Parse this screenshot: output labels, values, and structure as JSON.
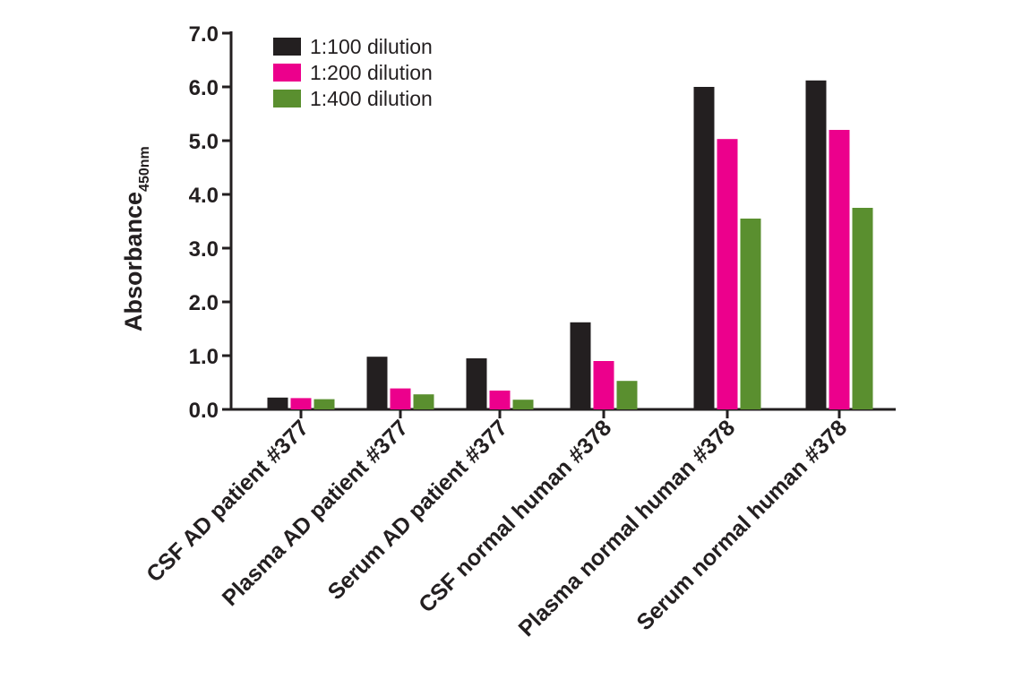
{
  "chart_data": {
    "type": "bar",
    "title": "",
    "xlabel": "",
    "ylabel": "Absorbance",
    "ylabel_subscript": "450nm",
    "ylim": [
      0,
      7
    ],
    "yticks": [
      "0.0",
      "1.0",
      "2.0",
      "3.0",
      "4.0",
      "5.0",
      "6.0",
      "7.0"
    ],
    "grid": false,
    "legend_position": "top-left",
    "categories": [
      "CSF AD patient #377",
      "Plasma AD patient #377",
      "Serum AD patient #377",
      "CSF normal human #378",
      "Plasma normal human #378",
      "Serum normal human #378"
    ],
    "series": [
      {
        "name": "1:100 dilution",
        "color": "#231f20",
        "values": [
          0.22,
          0.98,
          0.95,
          1.62,
          6.0,
          6.12
        ]
      },
      {
        "name": "1:200 dilution",
        "color": "#ec008c",
        "values": [
          0.21,
          0.39,
          0.35,
          0.9,
          5.03,
          5.2
        ]
      },
      {
        "name": "1:400 dilution",
        "color": "#5a8f2f",
        "values": [
          0.19,
          0.28,
          0.18,
          0.53,
          3.55,
          3.75
        ]
      }
    ]
  }
}
